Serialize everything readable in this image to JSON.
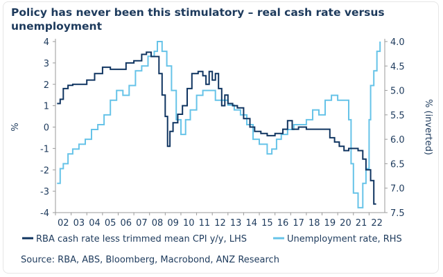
{
  "title": "Policy has never been this stimulatory – real cash rate versus unemployment",
  "source": "Source: RBA, ABS, Bloomberg, Macrobond, ANZ Research",
  "chart_data": {
    "type": "line",
    "title": "Policy has never been this stimulatory – real cash rate versus unemployment",
    "y_left": {
      "label": "%",
      "range": [
        -4,
        4
      ],
      "ticks": [
        4,
        3,
        2,
        1,
        0,
        -1,
        -2,
        -3,
        -4
      ]
    },
    "y_right": {
      "label": "% (inverted)",
      "range": [
        4.0,
        7.5
      ],
      "inverted": true,
      "ticks": [
        "4.0",
        "4.5",
        "5.0",
        "5.5",
        "6.0",
        "6.5",
        "7.0",
        "7.5"
      ]
    },
    "x": {
      "range": [
        2001.5,
        2022.5
      ],
      "ticks": [
        "02",
        "03",
        "04",
        "05",
        "06",
        "07",
        "08",
        "09",
        "10",
        "11",
        "12",
        "13",
        "14",
        "15",
        "16",
        "17",
        "18",
        "19",
        "20",
        "21",
        "22"
      ]
    },
    "grid": false,
    "legend_position": "bottom",
    "colors": {
      "cash": "#0f3460",
      "unemp": "#66c3e8",
      "text": "#1d3a5c",
      "axis": "#9a9a9a"
    },
    "series": [
      {
        "name": "RBA cash rate less trimmed mean CPI y/y, LHS",
        "axis": "left",
        "x": [
          2001.6,
          2001.8,
          2002.0,
          2002.3,
          2002.6,
          2003.0,
          2003.5,
          2004.0,
          2004.5,
          2005.0,
          2005.5,
          2006.0,
          2006.5,
          2007.0,
          2007.3,
          2007.6,
          2007.9,
          2008.1,
          2008.3,
          2008.5,
          2008.65,
          2008.8,
          2009.0,
          2009.3,
          2009.6,
          2009.9,
          2010.2,
          2010.6,
          2010.9,
          2011.1,
          2011.3,
          2011.5,
          2011.7,
          2011.9,
          2012.1,
          2012.3,
          2012.5,
          2012.8,
          2013.1,
          2013.5,
          2013.9,
          2014.2,
          2014.6,
          2015.0,
          2015.5,
          2016.0,
          2016.3,
          2016.6,
          2017.0,
          2017.5,
          2018.0,
          2018.5,
          2019.0,
          2019.3,
          2019.6,
          2019.9,
          2020.2,
          2020.5,
          2020.8,
          2021.1,
          2021.3,
          2021.6,
          2021.8,
          2021.95
        ],
        "y": [
          1.1,
          1.3,
          1.8,
          1.95,
          2.0,
          2.0,
          2.2,
          2.5,
          2.8,
          2.7,
          2.7,
          3.0,
          3.1,
          3.4,
          3.5,
          3.3,
          3.3,
          2.5,
          1.5,
          0.5,
          -0.9,
          -0.2,
          0.2,
          0.6,
          1.0,
          1.8,
          2.5,
          2.6,
          2.4,
          2.0,
          2.6,
          2.2,
          2.5,
          1.8,
          1.0,
          1.5,
          1.1,
          1.0,
          0.9,
          0.4,
          0.0,
          -0.2,
          -0.3,
          -0.4,
          -0.3,
          -0.1,
          0.3,
          -0.1,
          0.0,
          -0.1,
          -0.1,
          -0.1,
          -0.5,
          -0.7,
          -0.9,
          -1.1,
          -1.0,
          -1.0,
          -1.1,
          -1.5,
          -2.0,
          -2.5,
          -3.6,
          -3.6
        ]
      },
      {
        "name": "Unemployment rate, RHS",
        "axis": "right",
        "x": [
          2001.6,
          2001.8,
          2002.0,
          2002.3,
          2002.6,
          2003.0,
          2003.4,
          2003.8,
          2004.2,
          2004.6,
          2005.0,
          2005.4,
          2005.8,
          2006.2,
          2006.6,
          2007.0,
          2007.4,
          2007.8,
          2008.0,
          2008.3,
          2008.6,
          2008.9,
          2009.2,
          2009.5,
          2009.8,
          2010.1,
          2010.5,
          2010.9,
          2011.3,
          2011.7,
          2012.1,
          2012.5,
          2012.9,
          2013.3,
          2013.7,
          2014.1,
          2014.5,
          2014.8,
          2015.0,
          2015.3,
          2015.6,
          2015.9,
          2016.3,
          2016.7,
          2017.1,
          2017.5,
          2017.9,
          2018.3,
          2018.7,
          2019.1,
          2019.5,
          2019.8,
          2020.0,
          2020.2,
          2020.35,
          2020.5,
          2020.8,
          2021.1,
          2021.3,
          2021.5,
          2021.6,
          2021.8,
          2022.0,
          2022.2
        ],
        "y": [
          6.9,
          6.6,
          6.5,
          6.3,
          6.2,
          6.1,
          6.0,
          5.8,
          5.7,
          5.5,
          5.2,
          5.0,
          5.1,
          4.9,
          4.6,
          4.5,
          4.3,
          4.2,
          4.0,
          4.2,
          4.5,
          5.0,
          5.6,
          5.9,
          5.6,
          5.4,
          5.1,
          5.0,
          5.0,
          5.2,
          5.2,
          5.3,
          5.4,
          5.5,
          5.7,
          6.0,
          6.1,
          6.1,
          6.3,
          6.2,
          6.0,
          5.9,
          5.8,
          5.7,
          5.7,
          5.6,
          5.4,
          5.5,
          5.2,
          5.1,
          5.2,
          5.2,
          5.2,
          5.6,
          6.5,
          7.1,
          7.4,
          6.9,
          6.6,
          5.6,
          4.9,
          4.6,
          4.2,
          4.0
        ]
      }
    ]
  }
}
